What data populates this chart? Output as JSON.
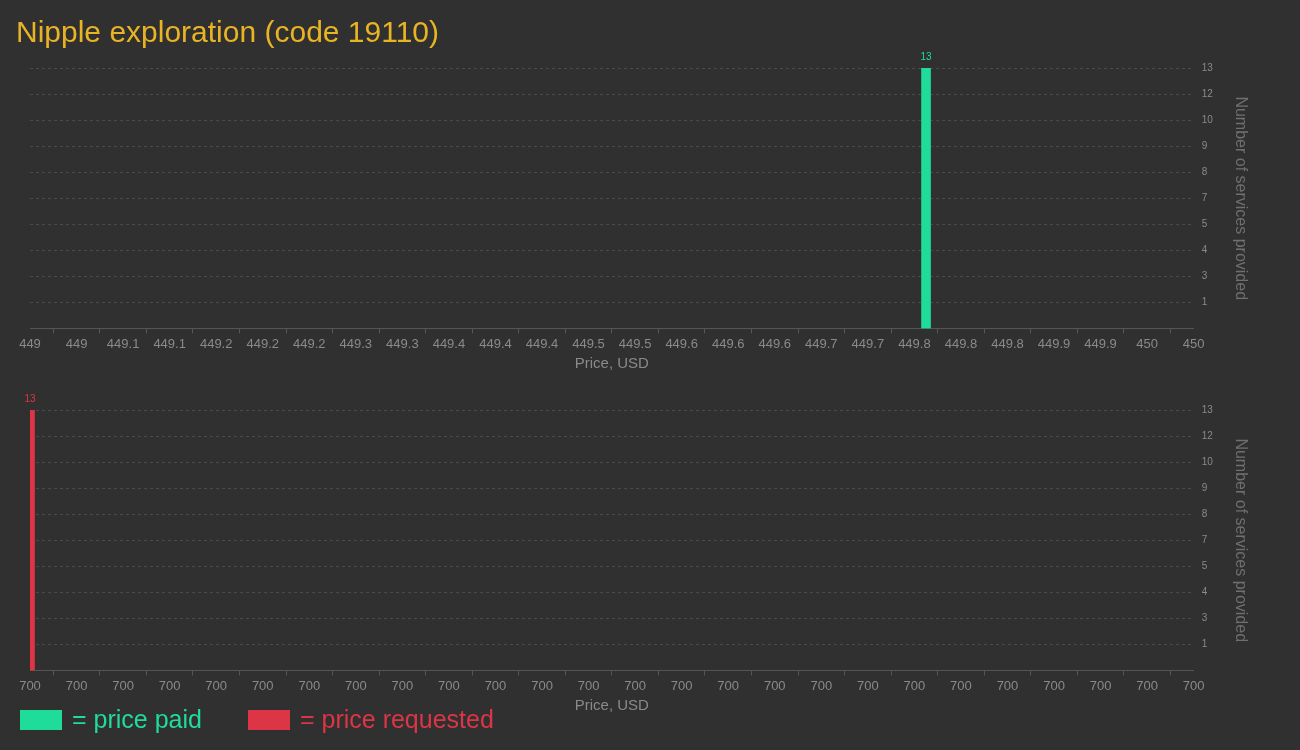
{
  "chart_data": [
    {
      "type": "bar",
      "title": "Nipple exploration (code 19110)",
      "xlabel": "Price, USD",
      "ylabel": "Number of services provided",
      "series": [
        {
          "name": "= price paid",
          "color": "#20dc9a",
          "x": [
            449.77
          ],
          "values": [
            13
          ]
        }
      ],
      "xlim": [
        449,
        450
      ],
      "xticks": [
        {
          "value": 449,
          "label": "449"
        },
        {
          "value": 449.04,
          "label": "449"
        },
        {
          "value": 449.08,
          "label": "449.1"
        },
        {
          "value": 449.12,
          "label": "449.1"
        },
        {
          "value": 449.16,
          "label": "449.2"
        },
        {
          "value": 449.2,
          "label": "449.2"
        },
        {
          "value": 449.24,
          "label": "449.2"
        },
        {
          "value": 449.28,
          "label": "449.3"
        },
        {
          "value": 449.32,
          "label": "449.3"
        },
        {
          "value": 449.36,
          "label": "449.4"
        },
        {
          "value": 449.4,
          "label": "449.4"
        },
        {
          "value": 449.44,
          "label": "449.4"
        },
        {
          "value": 449.48,
          "label": "449.5"
        },
        {
          "value": 449.52,
          "label": "449.5"
        },
        {
          "value": 449.56,
          "label": "449.6"
        },
        {
          "value": 449.6,
          "label": "449.6"
        },
        {
          "value": 449.64,
          "label": "449.6"
        },
        {
          "value": 449.68,
          "label": "449.7"
        },
        {
          "value": 449.72,
          "label": "449.7"
        },
        {
          "value": 449.76,
          "label": "449.8"
        },
        {
          "value": 449.8,
          "label": "449.8"
        },
        {
          "value": 449.84,
          "label": "449.8"
        },
        {
          "value": 449.88,
          "label": "449.9"
        },
        {
          "value": 449.92,
          "label": "449.9"
        },
        {
          "value": 449.96,
          "label": "450"
        },
        {
          "value": 450,
          "label": "450"
        }
      ],
      "ylim": [
        0,
        13
      ],
      "yticks": [
        {
          "value": 1.3,
          "label": "1"
        },
        {
          "value": 2.6,
          "label": "3"
        },
        {
          "value": 3.9,
          "label": "4"
        },
        {
          "value": 5.2,
          "label": "5"
        },
        {
          "value": 6.5,
          "label": "7"
        },
        {
          "value": 7.8,
          "label": "8"
        },
        {
          "value": 9.1,
          "label": "9"
        },
        {
          "value": 10.4,
          "label": "10"
        },
        {
          "value": 11.7,
          "label": "12"
        },
        {
          "value": 13,
          "label": "13"
        }
      ],
      "grid": "y",
      "data_labels": true,
      "legend": "bottom"
    },
    {
      "type": "bar",
      "xlabel": "Price, USD",
      "ylabel": "Number of services provided",
      "series": [
        {
          "name": "= price requested",
          "color": "#dc3545",
          "x": [
            700
          ],
          "values": [
            13
          ]
        }
      ],
      "xlim": [
        700,
        700.25
      ],
      "xticks": [
        {
          "value": 700,
          "label": "700"
        },
        {
          "value": 700.01,
          "label": "700"
        },
        {
          "value": 700.02,
          "label": "700"
        },
        {
          "value": 700.03,
          "label": "700"
        },
        {
          "value": 700.04,
          "label": "700"
        },
        {
          "value": 700.05,
          "label": "700"
        },
        {
          "value": 700.06,
          "label": "700"
        },
        {
          "value": 700.07,
          "label": "700"
        },
        {
          "value": 700.08,
          "label": "700"
        },
        {
          "value": 700.09,
          "label": "700"
        },
        {
          "value": 700.1,
          "label": "700"
        },
        {
          "value": 700.11,
          "label": "700"
        },
        {
          "value": 700.12,
          "label": "700"
        },
        {
          "value": 700.13,
          "label": "700"
        },
        {
          "value": 700.14,
          "label": "700"
        },
        {
          "value": 700.15,
          "label": "700"
        },
        {
          "value": 700.16,
          "label": "700"
        },
        {
          "value": 700.17,
          "label": "700"
        },
        {
          "value": 700.18,
          "label": "700"
        },
        {
          "value": 700.19,
          "label": "700"
        },
        {
          "value": 700.2,
          "label": "700"
        },
        {
          "value": 700.21,
          "label": "700"
        },
        {
          "value": 700.22,
          "label": "700"
        },
        {
          "value": 700.23,
          "label": "700"
        },
        {
          "value": 700.24,
          "label": "700"
        },
        {
          "value": 700.25,
          "label": "700"
        }
      ],
      "ylim": [
        0,
        13
      ],
      "yticks": [
        {
          "value": 1.3,
          "label": "1"
        },
        {
          "value": 2.6,
          "label": "3"
        },
        {
          "value": 3.9,
          "label": "4"
        },
        {
          "value": 5.2,
          "label": "5"
        },
        {
          "value": 6.5,
          "label": "7"
        },
        {
          "value": 7.8,
          "label": "8"
        },
        {
          "value": 9.1,
          "label": "9"
        },
        {
          "value": 10.4,
          "label": "10"
        },
        {
          "value": 11.7,
          "label": "12"
        },
        {
          "value": 13,
          "label": "13"
        }
      ],
      "grid": "y",
      "data_labels": true,
      "legend": "bottom"
    }
  ]
}
